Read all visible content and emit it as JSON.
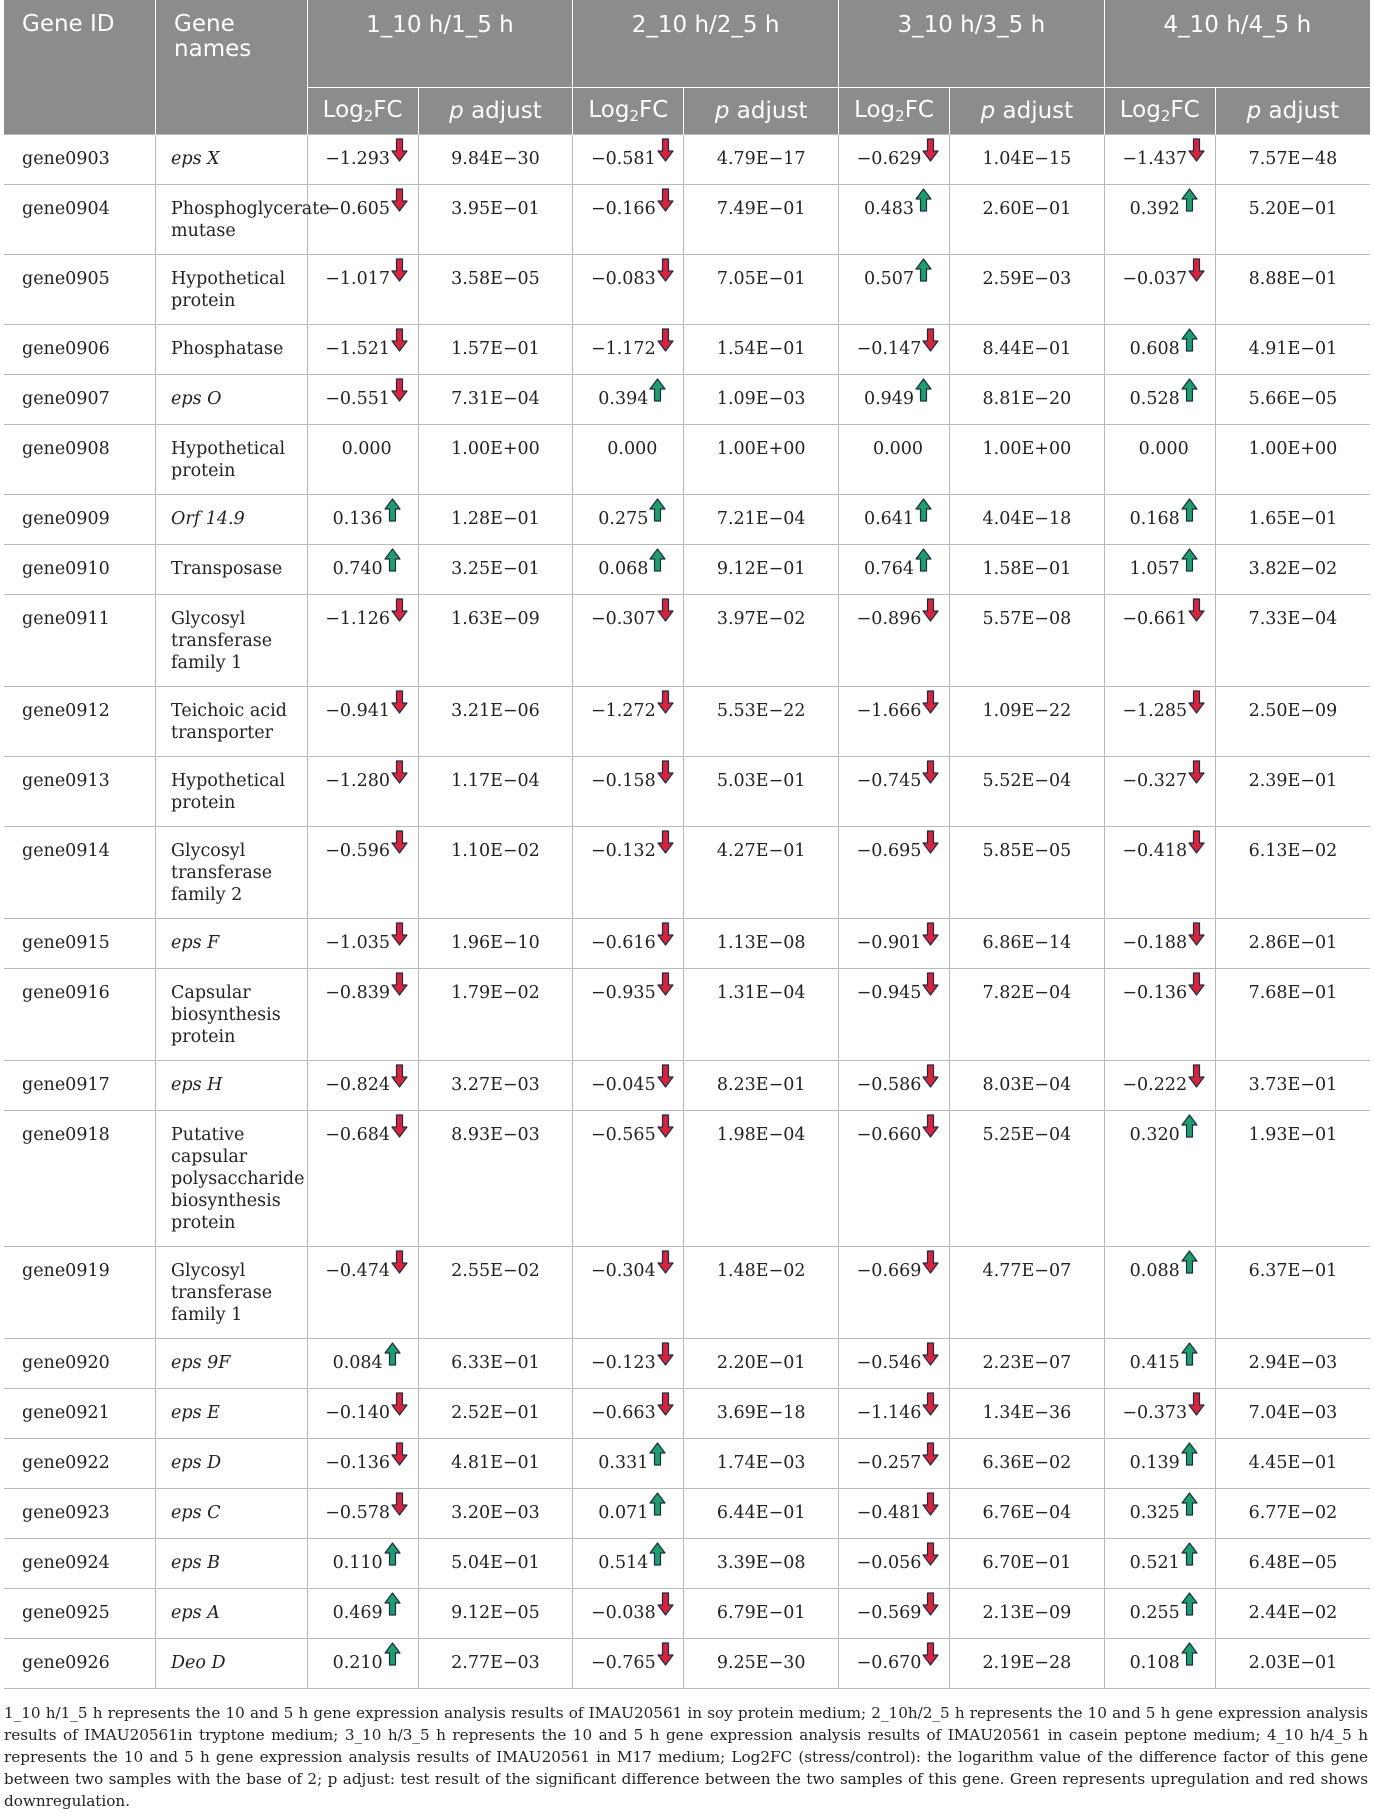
{
  "colors": {
    "header_bg": "#8a8c8e",
    "up": "#1f9d6b",
    "down": "#d6253a",
    "arrow_outline": "#1d2b4a"
  },
  "header": {
    "gene_id": "Gene ID",
    "gene_names": "Gene names",
    "groups": [
      "1_10 h/1_5 h",
      "2_10 h/2_5 h",
      "3_10 h/3_5 h",
      "4_10 h/4_5 h"
    ],
    "log2fc_main": "Log",
    "log2fc_sub": "2",
    "log2fc_tail": "FC",
    "p_italic": "p",
    "p_tail": " adjust"
  },
  "rows": [
    {
      "id": "gene0903",
      "name": "eps X",
      "italic": true,
      "vals": [
        {
          "fc": "−1.293",
          "dir": "down",
          "p": "9.84E−30"
        },
        {
          "fc": "−0.581",
          "dir": "down",
          "p": "4.79E−17"
        },
        {
          "fc": "−0.629",
          "dir": "down",
          "p": "1.04E−15"
        },
        {
          "fc": "−1.437",
          "dir": "down",
          "p": "7.57E−48"
        }
      ]
    },
    {
      "id": "gene0904",
      "name": "Phosphoglycerate mutase",
      "italic": false,
      "vals": [
        {
          "fc": "−0.605",
          "dir": "down",
          "p": "3.95E−01"
        },
        {
          "fc": "−0.166",
          "dir": "down",
          "p": "7.49E−01"
        },
        {
          "fc": "0.483",
          "dir": "up",
          "p": "2.60E−01"
        },
        {
          "fc": "0.392",
          "dir": "up",
          "p": "5.20E−01"
        }
      ]
    },
    {
      "id": "gene0905",
      "name": "Hypothetical protein",
      "italic": false,
      "vals": [
        {
          "fc": "−1.017",
          "dir": "down",
          "p": "3.58E−05"
        },
        {
          "fc": "−0.083",
          "dir": "down",
          "p": "7.05E−01"
        },
        {
          "fc": "0.507",
          "dir": "up",
          "p": "2.59E−03"
        },
        {
          "fc": "−0.037",
          "dir": "down",
          "p": "8.88E−01"
        }
      ]
    },
    {
      "id": "gene0906",
      "name": "Phosphatase",
      "italic": false,
      "vals": [
        {
          "fc": "−1.521",
          "dir": "down",
          "p": "1.57E−01"
        },
        {
          "fc": "−1.172",
          "dir": "down",
          "p": "1.54E−01"
        },
        {
          "fc": "−0.147",
          "dir": "down",
          "p": "8.44E−01"
        },
        {
          "fc": "0.608",
          "dir": "up",
          "p": "4.91E−01"
        }
      ]
    },
    {
      "id": "gene0907",
      "name": "eps O",
      "italic": true,
      "vals": [
        {
          "fc": "−0.551",
          "dir": "down",
          "p": "7.31E−04"
        },
        {
          "fc": "0.394",
          "dir": "up",
          "p": "1.09E−03"
        },
        {
          "fc": "0.949",
          "dir": "up",
          "p": "8.81E−20"
        },
        {
          "fc": "0.528",
          "dir": "up",
          "p": "5.66E−05"
        }
      ]
    },
    {
      "id": "gene0908",
      "name": "Hypothetical protein",
      "italic": false,
      "vals": [
        {
          "fc": "0.000",
          "dir": "",
          "p": "1.00E+00"
        },
        {
          "fc": "0.000",
          "dir": "",
          "p": "1.00E+00"
        },
        {
          "fc": "0.000",
          "dir": "",
          "p": "1.00E+00"
        },
        {
          "fc": "0.000",
          "dir": "",
          "p": "1.00E+00"
        }
      ]
    },
    {
      "id": "gene0909",
      "name": "Orf 14.9",
      "italic": true,
      "vals": [
        {
          "fc": "0.136",
          "dir": "up",
          "p": "1.28E−01"
        },
        {
          "fc": "0.275",
          "dir": "up",
          "p": "7.21E−04"
        },
        {
          "fc": "0.641",
          "dir": "up",
          "p": "4.04E−18"
        },
        {
          "fc": "0.168",
          "dir": "up",
          "p": "1.65E−01"
        }
      ]
    },
    {
      "id": "gene0910",
      "name": "Transposase",
      "italic": false,
      "vals": [
        {
          "fc": "0.740",
          "dir": "up",
          "p": "3.25E−01"
        },
        {
          "fc": "0.068",
          "dir": "up",
          "p": "9.12E−01"
        },
        {
          "fc": "0.764",
          "dir": "up",
          "p": "1.58E−01"
        },
        {
          "fc": "1.057",
          "dir": "up",
          "p": "3.82E−02"
        }
      ]
    },
    {
      "id": "gene0911",
      "name": "Glycosyl transferase family 1",
      "italic": false,
      "vals": [
        {
          "fc": "−1.126",
          "dir": "down",
          "p": "1.63E−09"
        },
        {
          "fc": "−0.307",
          "dir": "down",
          "p": "3.97E−02"
        },
        {
          "fc": "−0.896",
          "dir": "down",
          "p": "5.57E−08"
        },
        {
          "fc": "−0.661",
          "dir": "down",
          "p": "7.33E−04"
        }
      ]
    },
    {
      "id": "gene0912",
      "name": "Teichoic acid transporter",
      "italic": false,
      "vals": [
        {
          "fc": "−0.941",
          "dir": "down",
          "p": "3.21E−06"
        },
        {
          "fc": "−1.272",
          "dir": "down",
          "p": "5.53E−22"
        },
        {
          "fc": "−1.666",
          "dir": "down",
          "p": "1.09E−22"
        },
        {
          "fc": "−1.285",
          "dir": "down",
          "p": "2.50E−09"
        }
      ]
    },
    {
      "id": "gene0913",
      "name": "Hypothetical protein",
      "italic": false,
      "vals": [
        {
          "fc": "−1.280",
          "dir": "down",
          "p": "1.17E−04"
        },
        {
          "fc": "−0.158",
          "dir": "down",
          "p": "5.03E−01"
        },
        {
          "fc": "−0.745",
          "dir": "down",
          "p": "5.52E−04"
        },
        {
          "fc": "−0.327",
          "dir": "down",
          "p": "2.39E−01"
        }
      ]
    },
    {
      "id": "gene0914",
      "name": "Glycosyl transferase family 2",
      "italic": false,
      "vals": [
        {
          "fc": "−0.596",
          "dir": "down",
          "p": "1.10E−02"
        },
        {
          "fc": "−0.132",
          "dir": "down",
          "p": "4.27E−01"
        },
        {
          "fc": "−0.695",
          "dir": "down",
          "p": "5.85E−05"
        },
        {
          "fc": "−0.418",
          "dir": "down",
          "p": "6.13E−02"
        }
      ]
    },
    {
      "id": "gene0915",
      "name": "eps F",
      "italic": true,
      "vals": [
        {
          "fc": "−1.035",
          "dir": "down",
          "p": "1.96E−10"
        },
        {
          "fc": "−0.616",
          "dir": "down",
          "p": "1.13E−08"
        },
        {
          "fc": "−0.901",
          "dir": "down",
          "p": "6.86E−14"
        },
        {
          "fc": "−0.188",
          "dir": "down",
          "p": "2.86E−01"
        }
      ]
    },
    {
      "id": "gene0916",
      "name": "Capsular biosynthesis protein",
      "italic": false,
      "vals": [
        {
          "fc": "−0.839",
          "dir": "down",
          "p": "1.79E−02"
        },
        {
          "fc": "−0.935",
          "dir": "down",
          "p": "1.31E−04"
        },
        {
          "fc": "−0.945",
          "dir": "down",
          "p": "7.82E−04"
        },
        {
          "fc": "−0.136",
          "dir": "down",
          "p": "7.68E−01"
        }
      ]
    },
    {
      "id": "gene0917",
      "name": "eps H",
      "italic": true,
      "vals": [
        {
          "fc": "−0.824",
          "dir": "down",
          "p": "3.27E−03"
        },
        {
          "fc": "−0.045",
          "dir": "down",
          "p": "8.23E−01"
        },
        {
          "fc": "−0.586",
          "dir": "down",
          "p": "8.03E−04"
        },
        {
          "fc": "−0.222",
          "dir": "down",
          "p": "3.73E−01"
        }
      ]
    },
    {
      "id": "gene0918",
      "name": "Putative capsular polysaccharide biosynthesis protein",
      "italic": false,
      "vals": [
        {
          "fc": "−0.684",
          "dir": "down",
          "p": "8.93E−03"
        },
        {
          "fc": "−0.565",
          "dir": "down",
          "p": "1.98E−04"
        },
        {
          "fc": "−0.660",
          "dir": "down",
          "p": "5.25E−04"
        },
        {
          "fc": "0.320",
          "dir": "up",
          "p": "1.93E−01"
        }
      ]
    },
    {
      "id": "gene0919",
      "name": "Glycosyl transferase family 1",
      "italic": false,
      "vals": [
        {
          "fc": "−0.474",
          "dir": "down",
          "p": "2.55E−02"
        },
        {
          "fc": "−0.304",
          "dir": "down",
          "p": "1.48E−02"
        },
        {
          "fc": "−0.669",
          "dir": "down",
          "p": "4.77E−07"
        },
        {
          "fc": "0.088",
          "dir": "up",
          "p": "6.37E−01"
        }
      ]
    },
    {
      "id": "gene0920",
      "name": "eps 9F",
      "italic": true,
      "vals": [
        {
          "fc": "0.084",
          "dir": "up",
          "p": "6.33E−01"
        },
        {
          "fc": "−0.123",
          "dir": "down",
          "p": "2.20E−01"
        },
        {
          "fc": "−0.546",
          "dir": "down",
          "p": "2.23E−07"
        },
        {
          "fc": "0.415",
          "dir": "up",
          "p": "2.94E−03"
        }
      ]
    },
    {
      "id": "gene0921",
      "name": "eps E",
      "italic": true,
      "vals": [
        {
          "fc": "−0.140",
          "dir": "down",
          "p": "2.52E−01"
        },
        {
          "fc": "−0.663",
          "dir": "down",
          "p": "3.69E−18"
        },
        {
          "fc": "−1.146",
          "dir": "down",
          "p": "1.34E−36"
        },
        {
          "fc": "−0.373",
          "dir": "down",
          "p": "7.04E−03"
        }
      ]
    },
    {
      "id": "gene0922",
      "name": "eps D",
      "italic": true,
      "vals": [
        {
          "fc": "−0.136",
          "dir": "down",
          "p": "4.81E−01"
        },
        {
          "fc": "0.331",
          "dir": "up",
          "p": "1.74E−03"
        },
        {
          "fc": "−0.257",
          "dir": "down",
          "p": "6.36E−02"
        },
        {
          "fc": "0.139",
          "dir": "up",
          "p": "4.45E−01"
        }
      ]
    },
    {
      "id": "gene0923",
      "name": "eps C",
      "italic": true,
      "vals": [
        {
          "fc": "−0.578",
          "dir": "down",
          "p": "3.20E−03"
        },
        {
          "fc": "0.071",
          "dir": "up",
          "p": "6.44E−01"
        },
        {
          "fc": "−0.481",
          "dir": "down",
          "p": "6.76E−04"
        },
        {
          "fc": "0.325",
          "dir": "up",
          "p": "6.77E−02"
        }
      ]
    },
    {
      "id": "gene0924",
      "name": "eps B",
      "italic": true,
      "vals": [
        {
          "fc": "0.110",
          "dir": "up",
          "p": "5.04E−01"
        },
        {
          "fc": "0.514",
          "dir": "up",
          "p": "3.39E−08"
        },
        {
          "fc": "−0.056",
          "dir": "down",
          "p": "6.70E−01"
        },
        {
          "fc": "0.521",
          "dir": "up",
          "p": "6.48E−05"
        }
      ]
    },
    {
      "id": "gene0925",
      "name": "eps A",
      "italic": true,
      "vals": [
        {
          "fc": "0.469",
          "dir": "up",
          "p": "9.12E−05"
        },
        {
          "fc": "−0.038",
          "dir": "down",
          "p": "6.79E−01"
        },
        {
          "fc": "−0.569",
          "dir": "down",
          "p": "2.13E−09"
        },
        {
          "fc": "0.255",
          "dir": "up",
          "p": "2.44E−02"
        }
      ]
    },
    {
      "id": "gene0926",
      "name": "Deo D",
      "italic": true,
      "vals": [
        {
          "fc": "0.210",
          "dir": "up",
          "p": "2.77E−03"
        },
        {
          "fc": "−0.765",
          "dir": "down",
          "p": "9.25E−30"
        },
        {
          "fc": "−0.670",
          "dir": "down",
          "p": "2.19E−28"
        },
        {
          "fc": "0.108",
          "dir": "up",
          "p": "2.03E−01"
        }
      ]
    }
  ],
  "footnote": "1_10 h/1_5 h represents the 10 and 5 h gene expression analysis results of IMAU20561 in soy protein medium; 2_10h/2_5 h represents the 10 and 5 h gene expression analysis results of IMAU20561in tryptone medium; 3_10 h/3_5 h represents the 10 and 5 h gene expression analysis results of IMAU20561 in casein peptone medium; 4_10 h/4_5 h represents the 10 and 5 h gene expression analysis results of IMAU20561 in M17 medium; Log2FC (stress/control): the logarithm value of the difference factor of this gene between two samples with the base of 2; p adjust: test result of the significant difference between the two samples of this gene. Green represents upregulation and red shows downregulation."
}
